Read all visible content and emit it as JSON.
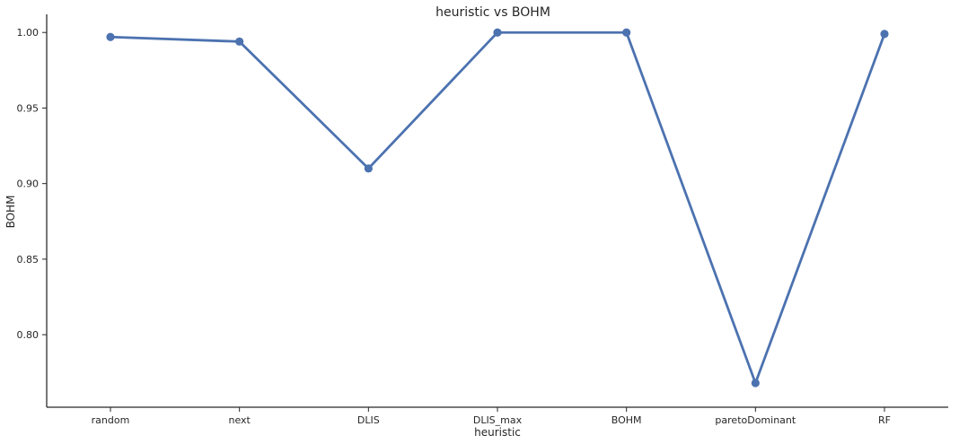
{
  "chart_data": {
    "type": "line",
    "title": "heuristic vs BOHM",
    "xlabel": "heuristic",
    "ylabel": "BOHM",
    "categories": [
      "random",
      "next",
      "DLIS",
      "DLIS_max",
      "BOHM",
      "paretoDominant",
      "RF"
    ],
    "series": [
      {
        "values": [
          0.997,
          0.994,
          0.91,
          1.0,
          1.0,
          0.768,
          0.999
        ],
        "color": "#4C72B0"
      }
    ],
    "ylim": [
      0.752,
      1.012
    ],
    "yticks": [
      0.8,
      0.85,
      0.9,
      0.95,
      1.0
    ],
    "ytick_labels": [
      "0.80",
      "0.85",
      "0.90",
      "0.95",
      "1.00"
    ],
    "grid": false,
    "markers": true,
    "legend": "none"
  }
}
